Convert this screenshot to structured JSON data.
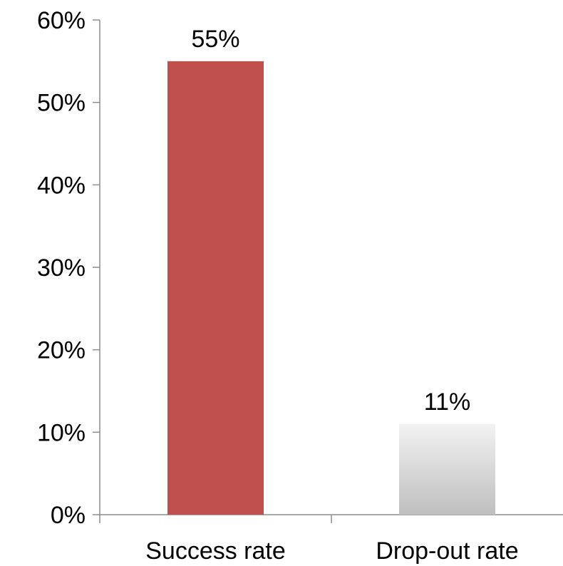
{
  "chart_data": {
    "type": "bar",
    "title": "",
    "xlabel": "",
    "ylabel": "",
    "categories": [
      "Success rate",
      "Drop-out rate"
    ],
    "values": [
      55,
      11
    ],
    "value_labels": [
      "55%",
      "11%"
    ],
    "ylim": [
      0,
      60
    ],
    "y_ticks": [
      0,
      10,
      20,
      30,
      40,
      50,
      60
    ],
    "y_tick_labels": [
      "0%",
      "10%",
      "20%",
      "30%",
      "40%",
      "50%",
      "60%"
    ],
    "grid": false,
    "legend": "none",
    "colors": {
      "success_bar": "#c0504d",
      "dropout_bar_top": "#f2f2f2",
      "dropout_bar_bottom": "#bfbfbf",
      "axis": "#8c8c8c"
    }
  }
}
